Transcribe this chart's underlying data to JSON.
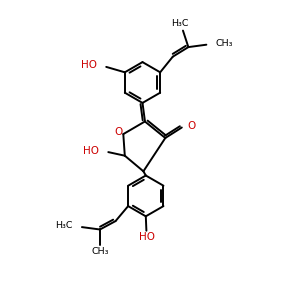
{
  "background": "#ffffff",
  "bond_color": "#000000",
  "heteroatom_color": "#cc0000",
  "bond_lw": 1.4,
  "figsize": [
    3.0,
    3.0
  ],
  "dpi": 100,
  "xlim": [
    0,
    10
  ],
  "ylim": [
    0,
    10
  ]
}
